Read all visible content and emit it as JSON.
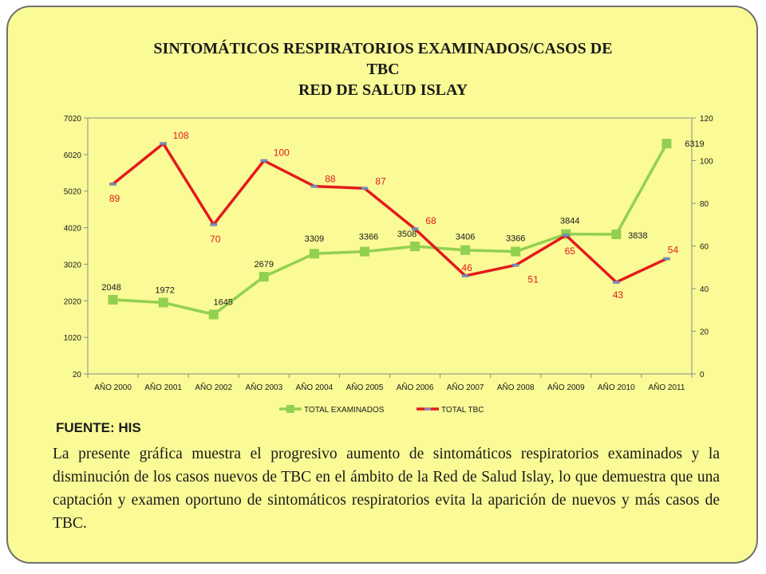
{
  "slide": {
    "background": "#fafa96",
    "source_label": "FUENTE: HIS",
    "caption": "La presente gráfica muestra el progresivo aumento de sintomáticos respiratorios examinados y la disminución de los casos nuevos de TBC en el ámbito de la Red de Salud Islay, lo que demuestra que una captación y examen  oportuno  de sintomáticos respiratorios evita la aparición de nuevos y más casos de TBC."
  },
  "chart_data": {
    "type": "line",
    "title_lines": [
      "SINTOMÁTICOS RESPIRATORIOS EXAMINADOS/CASOS DE",
      "TBC",
      "RED DE SALUD ISLAY"
    ],
    "categories": [
      "AÑO 2000",
      "AÑO 2001",
      "AÑO 2002",
      "AÑO 2003",
      "AÑO 2004",
      "AÑO 2005",
      "AÑO 2006",
      "AÑO 2007",
      "AÑO 2008",
      "AÑO 2009",
      "AÑO 2010",
      "AÑO 2011"
    ],
    "y_left": {
      "min": 20,
      "max": 7020,
      "ticks": [
        20,
        1020,
        2020,
        3020,
        4020,
        5020,
        6020,
        7020
      ]
    },
    "y_right": {
      "min": 0,
      "max": 120,
      "ticks": [
        0,
        20,
        40,
        60,
        80,
        100,
        120
      ]
    },
    "series": [
      {
        "name": "TOTAL EXAMINADOS",
        "axis": "left",
        "color": "#92d050",
        "marker": "square",
        "label_color": "#1a1a1a",
        "values": [
          2048,
          1972,
          1645,
          2679,
          3309,
          3366,
          3508,
          3406,
          3366,
          3844,
          3838,
          6319
        ]
      },
      {
        "name": "TOTAL TBC",
        "axis": "right",
        "color": "#e31a1c",
        "marker": "dash",
        "label_color": "#e31a1c",
        "values": [
          89,
          108,
          70,
          100,
          88,
          87,
          68,
          46,
          51,
          65,
          43,
          54
        ]
      }
    ],
    "legend_position": "bottom",
    "grid": false
  }
}
